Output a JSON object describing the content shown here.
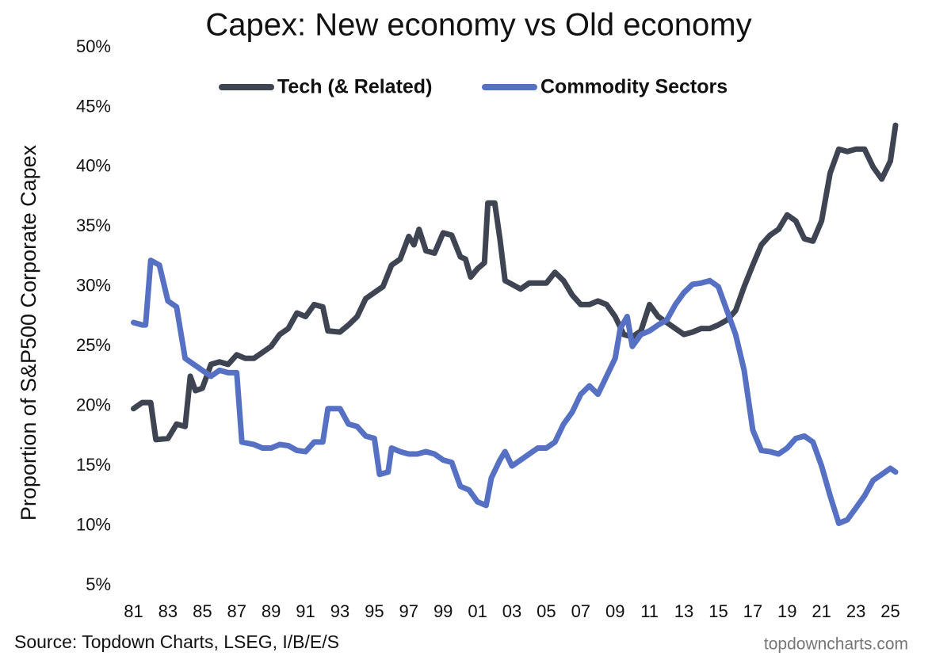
{
  "chart_data": {
    "type": "line",
    "title": "Capex: New economy vs Old economy",
    "y_label": "Proportion of S&P500 Corporate Capex",
    "source": "Source: Topdown Charts, LSEG, I/B/E/S",
    "watermark": "topdowncharts.com",
    "legend": "top",
    "grid": false,
    "xlim": [
      1980.7,
      2025.3
    ],
    "xticks": [
      {
        "value": 1981,
        "label": "81"
      },
      {
        "value": 1983,
        "label": "83"
      },
      {
        "value": 1985,
        "label": "85"
      },
      {
        "value": 1987,
        "label": "87"
      },
      {
        "value": 1989,
        "label": "89"
      },
      {
        "value": 1991,
        "label": "91"
      },
      {
        "value": 1993,
        "label": "93"
      },
      {
        "value": 1995,
        "label": "95"
      },
      {
        "value": 1997,
        "label": "97"
      },
      {
        "value": 1999,
        "label": "99"
      },
      {
        "value": 2001,
        "label": "01"
      },
      {
        "value": 2003,
        "label": "03"
      },
      {
        "value": 2005,
        "label": "05"
      },
      {
        "value": 2007,
        "label": "07"
      },
      {
        "value": 2009,
        "label": "09"
      },
      {
        "value": 2011,
        "label": "11"
      },
      {
        "value": 2013,
        "label": "13"
      },
      {
        "value": 2015,
        "label": "15"
      },
      {
        "value": 2017,
        "label": "17"
      },
      {
        "value": 2019,
        "label": "19"
      },
      {
        "value": 2021,
        "label": "21"
      },
      {
        "value": 2023,
        "label": "23"
      },
      {
        "value": 2025,
        "label": "25"
      }
    ],
    "ylim": [
      5,
      50
    ],
    "yticks": [
      {
        "value": 5,
        "label": "5%"
      },
      {
        "value": 10,
        "label": "10%"
      },
      {
        "value": 15,
        "label": "15%"
      },
      {
        "value": 20,
        "label": "20%"
      },
      {
        "value": 25,
        "label": "25%"
      },
      {
        "value": 30,
        "label": "30%"
      },
      {
        "value": 35,
        "label": "35%"
      },
      {
        "value": 40,
        "label": "40%"
      },
      {
        "value": 45,
        "label": "45%"
      },
      {
        "value": 50,
        "label": "50%"
      }
    ],
    "series": [
      {
        "name": "Tech (& Related)",
        "color": "#3f4453",
        "x": [
          1981,
          1981.5,
          1982,
          1982.3,
          1983,
          1983.5,
          1984,
          1984.3,
          1984.6,
          1985,
          1985.5,
          1986,
          1986.5,
          1987,
          1987.5,
          1988,
          1988.5,
          1989,
          1989.5,
          1990,
          1990.5,
          1991,
          1991.5,
          1992,
          1992.3,
          1993,
          1993.5,
          1994,
          1994.5,
          1995,
          1995.5,
          1996,
          1996.5,
          1997,
          1997.3,
          1997.6,
          1998,
          1998.5,
          1999,
          1999.5,
          2000,
          2000.3,
          2000.6,
          2001,
          2001.4,
          2001.6,
          2002,
          2002.3,
          2002.6,
          2003,
          2003.5,
          2004,
          2004.5,
          2005,
          2005.5,
          2006,
          2006.5,
          2007,
          2007.5,
          2008,
          2008.5,
          2009,
          2009.5,
          2010,
          2010.5,
          2011,
          2011.5,
          2012,
          2012.5,
          2013,
          2013.5,
          2014,
          2014.5,
          2015,
          2015.5,
          2016,
          2016.5,
          2017,
          2017.5,
          2018,
          2018.5,
          2019,
          2019.5,
          2020,
          2020.5,
          2021,
          2021.5,
          2022,
          2022.5,
          2023,
          2023.5,
          2024,
          2024.5,
          2025,
          2025.3
        ],
        "values": [
          19.8,
          20.3,
          20.3,
          17.2,
          17.3,
          18.5,
          18.3,
          22.5,
          21.3,
          21.5,
          23.5,
          23.7,
          23.5,
          24.3,
          24.0,
          24.0,
          24.5,
          25.0,
          26.0,
          26.5,
          27.8,
          27.5,
          28.5,
          28.3,
          26.3,
          26.2,
          26.8,
          27.5,
          29.0,
          29.5,
          30.0,
          31.8,
          32.3,
          34.2,
          33.5,
          34.8,
          33.0,
          32.8,
          34.5,
          34.3,
          32.5,
          32.3,
          30.8,
          31.5,
          32.0,
          37.0,
          37.0,
          34.0,
          30.5,
          30.2,
          29.8,
          30.3,
          30.3,
          30.3,
          31.2,
          30.5,
          29.3,
          28.5,
          28.5,
          28.8,
          28.5,
          27.5,
          26.0,
          25.8,
          26.3,
          28.5,
          27.5,
          27.0,
          26.5,
          26.0,
          26.2,
          26.5,
          26.5,
          26.8,
          27.2,
          28.0,
          30.0,
          31.8,
          33.5,
          34.3,
          34.8,
          36.0,
          35.5,
          34.0,
          33.8,
          35.5,
          39.5,
          41.5,
          41.3,
          41.5,
          41.5,
          40.0,
          39.0,
          40.5,
          43.5
        ]
      },
      {
        "name": "Commodity Sectors",
        "color": "#5670c4",
        "x": [
          1981,
          1981.5,
          1981.7,
          1982,
          1982.5,
          1983,
          1983.5,
          1984,
          1984.5,
          1985,
          1985.5,
          1986,
          1986.5,
          1987,
          1987.3,
          1988,
          1988.5,
          1989,
          1989.5,
          1990,
          1990.5,
          1991,
          1991.5,
          1992,
          1992.3,
          1993,
          1993.5,
          1994,
          1994.5,
          1995,
          1995.3,
          1995.8,
          1996,
          1996.5,
          1997,
          1997.5,
          1998,
          1998.5,
          1999,
          1999.5,
          2000,
          2000.5,
          2001,
          2001.5,
          2001.8,
          2002.3,
          2002.6,
          2003,
          2003.5,
          2004,
          2004.5,
          2005,
          2005.5,
          2006,
          2006.5,
          2007,
          2007.5,
          2008,
          2008.5,
          2009,
          2009.3,
          2009.7,
          2010,
          2010.5,
          2011,
          2011.5,
          2012,
          2012.5,
          2013,
          2013.5,
          2014,
          2014.5,
          2015,
          2015.5,
          2016,
          2016.5,
          2017,
          2017.5,
          2018,
          2018.5,
          2019,
          2019.5,
          2020,
          2020.5,
          2021,
          2021.5,
          2022,
          2022.5,
          2023,
          2023.5,
          2024,
          2024.5,
          2025,
          2025.3
        ],
        "values": [
          27.0,
          26.8,
          26.8,
          32.2,
          31.8,
          28.8,
          28.3,
          24.0,
          23.5,
          23.0,
          22.5,
          23.0,
          22.8,
          22.8,
          17.0,
          16.8,
          16.5,
          16.5,
          16.8,
          16.7,
          16.3,
          16.2,
          17.0,
          17.0,
          19.8,
          19.8,
          18.5,
          18.3,
          17.5,
          17.3,
          14.3,
          14.5,
          16.5,
          16.2,
          16.0,
          16.0,
          16.2,
          16.0,
          15.5,
          15.3,
          13.3,
          13.0,
          12.0,
          11.7,
          14.0,
          15.5,
          16.2,
          15.0,
          15.5,
          16.0,
          16.5,
          16.5,
          17.0,
          18.5,
          19.5,
          21.0,
          21.7,
          21.0,
          22.5,
          24.0,
          26.5,
          27.5,
          25.0,
          26.0,
          26.3,
          26.8,
          27.2,
          28.5,
          29.5,
          30.2,
          30.3,
          30.5,
          30.0,
          28.0,
          26.0,
          23.0,
          18.0,
          16.3,
          16.2,
          16.0,
          16.5,
          17.3,
          17.5,
          17.0,
          15.0,
          12.5,
          10.2,
          10.5,
          11.5,
          12.5,
          13.8,
          14.3,
          14.8,
          14.5
        ]
      }
    ]
  }
}
